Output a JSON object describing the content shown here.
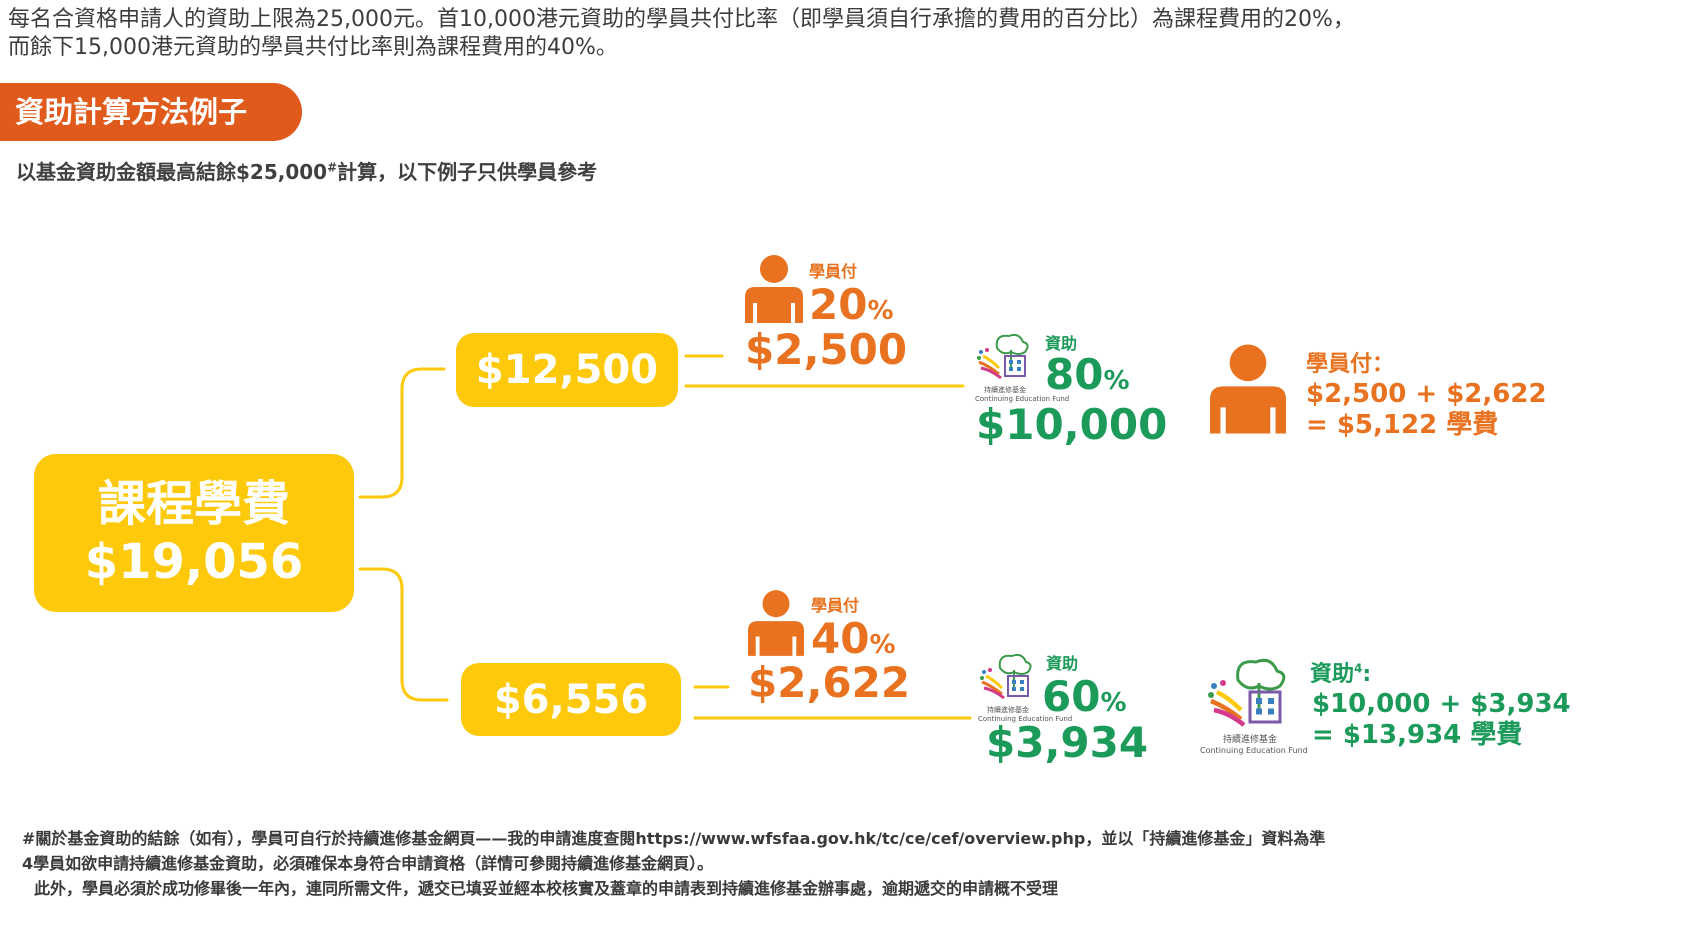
{
  "intro": {
    "line1": "每名合資格申請人的資助上限為25,000元。首10,000港元資助的學員共付比率（即學員須自行承擔的費用的百分比）為課程費用的20%，",
    "line2": "而餘下15,000港元資助的學員共付比率則為課程費用的40%。"
  },
  "section_title": "資助計算方法例子",
  "note": {
    "before": "以基金資助金額最高結餘$25,000",
    "mark": "#",
    "after": "計算，以下例子只供學員參考"
  },
  "main": {
    "title": "課程學費",
    "amount": "$19,056"
  },
  "branch1": {
    "portion": "$12,500",
    "student_label": "學員付",
    "student_pct": "20",
    "student_amount": "$2,500",
    "subsidy_label": "資助",
    "subsidy_pct": "80",
    "subsidy_amount": "$10,000"
  },
  "branch2": {
    "portion": "$6,556",
    "student_label": "學員付",
    "student_pct": "40",
    "student_amount": "$2,622",
    "subsidy_label": "資助",
    "subsidy_pct": "60",
    "subsidy_amount": "$3,934"
  },
  "pct_sign": "%",
  "summary_student": {
    "label": "學員付：",
    "line1": "$2,500 + $2,622",
    "line2": "= $5,122 學費"
  },
  "summary_subsidy": {
    "label": "資助",
    "sup": "4",
    "colon": ":",
    "line1": "$10,000 + $3,934",
    "line2": "= $13,934 學費"
  },
  "logo": {
    "zh": "持續進修基金",
    "en": "Continuing Education Fund"
  },
  "footnotes": {
    "fn1": "#關於基金資助的結餘（如有），學員可自行於持續進修基金網頁——我的申請進度查閱https://www.wfsfaa.gov.hk/tc/ce/cef/overview.php，並以「持續進修基金」資料為準",
    "fn2": "4學員如欲申請持續進修基金資助，必須確保本身符合申請資格（詳情可參閱持續進修基金網頁）。",
    "fn3": "此外，學員必須於成功修畢後一年內，連同所需文件，遞交已填妥並經本校核實及蓋章的申請表到持續進修基金辦事處，逾期遞交的申請概不受理"
  },
  "colors": {
    "yellow": "#fec90a",
    "orange": "#e8721f",
    "green": "#1b9a5a",
    "tag": "#e05a1c"
  },
  "icons": [
    "person-icon",
    "cef-logo-icon"
  ]
}
